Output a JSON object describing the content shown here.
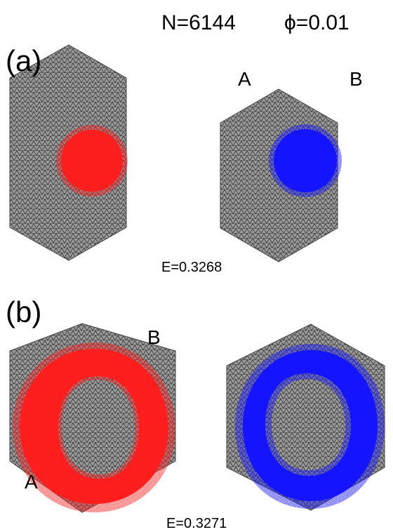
{
  "header": {
    "n_text": "N=6144",
    "phi_text": "ϕ=0.01"
  },
  "panel_a": {
    "letter": "(a)",
    "left_label": "A",
    "right_label": "B",
    "energy": "E=0.3268"
  },
  "panel_b": {
    "letter": "(b)",
    "top_label": "B",
    "bottom_label": "A",
    "energy": "E=0.3271"
  },
  "colors": {
    "lattice_fill": "#8f8f8f",
    "lattice_line": "#1a1a1a",
    "red": "#ff1e1e",
    "blue": "#1414ff",
    "background": "#ffffff",
    "text": "#000000"
  }
}
